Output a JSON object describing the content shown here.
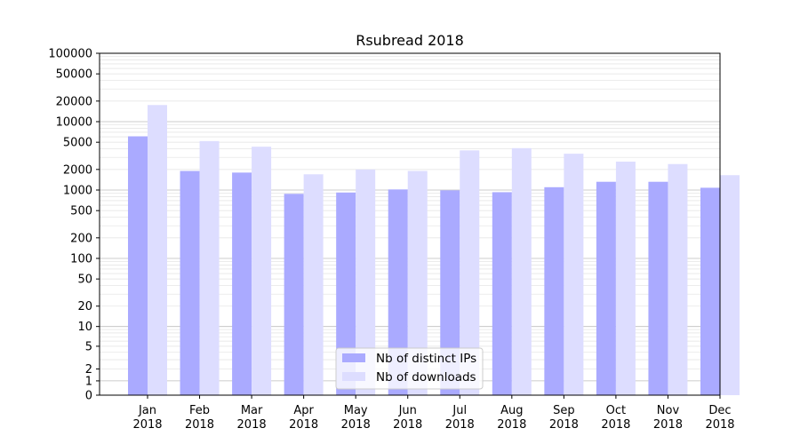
{
  "chart_data": {
    "type": "bar",
    "title": "Rsubread 2018",
    "xlabel": "",
    "ylabel": "",
    "yscale": "symlog",
    "ylim": [
      0,
      100000
    ],
    "grid": true,
    "legend_position": "bottom-center",
    "categories": [
      [
        "Jan",
        "2018"
      ],
      [
        "Feb",
        "2018"
      ],
      [
        "Mar",
        "2018"
      ],
      [
        "Apr",
        "2018"
      ],
      [
        "May",
        "2018"
      ],
      [
        "Jun",
        "2018"
      ],
      [
        "Jul",
        "2018"
      ],
      [
        "Aug",
        "2018"
      ],
      [
        "Sep",
        "2018"
      ],
      [
        "Oct",
        "2018"
      ],
      [
        "Nov",
        "2018"
      ],
      [
        "Dec",
        "2018"
      ]
    ],
    "yticks": [
      "0",
      "1",
      "2",
      "5",
      "10",
      "20",
      "50",
      "100",
      "200",
      "500",
      "1000",
      "2000",
      "5000",
      "10000",
      "20000",
      "50000",
      "100000"
    ],
    "series": [
      {
        "name": "Nb of distinct IPs",
        "color": "#aaaaff",
        "values": [
          6100,
          1900,
          1800,
          880,
          920,
          1020,
          990,
          930,
          1100,
          1320,
          1320,
          1080
        ]
      },
      {
        "name": "Nb of downloads",
        "color": "#ddddff",
        "values": [
          17500,
          5200,
          4300,
          1700,
          2000,
          1900,
          3800,
          4100,
          3400,
          2600,
          2400,
          1650
        ]
      }
    ]
  }
}
